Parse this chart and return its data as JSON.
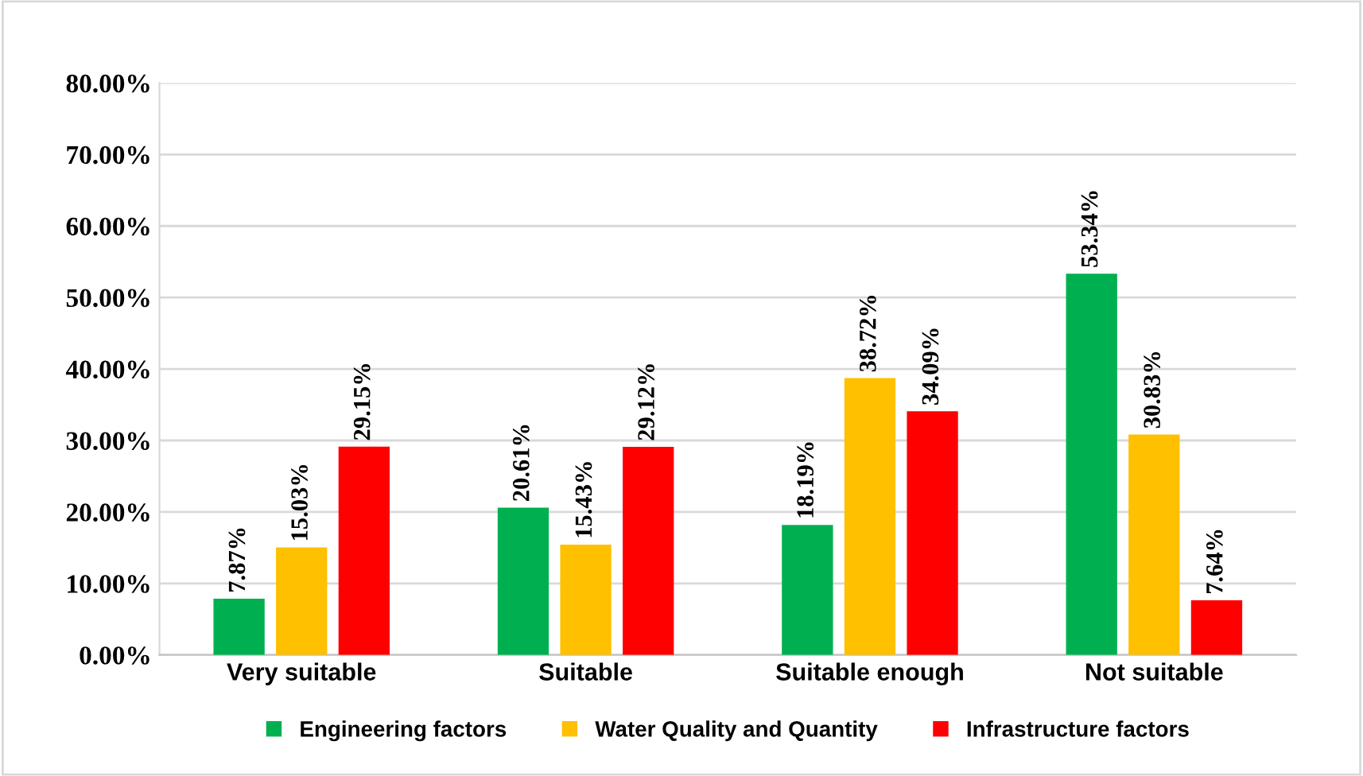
{
  "chart_data": {
    "type": "bar",
    "categories": [
      "Very suitable",
      "Suitable",
      "Suitable enough",
      "Not suitable"
    ],
    "series": [
      {
        "name": "Engineering factors",
        "color": "#00b050",
        "values": [
          7.87,
          20.61,
          18.19,
          53.34
        ],
        "value_labels": [
          "7.87%",
          "20.61%",
          "18.19%",
          "53.34%"
        ]
      },
      {
        "name": "Water Quality and Quantity",
        "color": "#ffc000",
        "values": [
          15.03,
          15.43,
          38.72,
          30.83
        ],
        "value_labels": [
          "15.03%",
          "15.43%",
          "38.72%",
          "30.83%"
        ]
      },
      {
        "name": "Infrastructure factors",
        "color": "#ff0000",
        "values": [
          29.15,
          29.12,
          34.09,
          7.64
        ],
        "value_labels": [
          "29.15%",
          "29.12%",
          "34.09%",
          "7.64%"
        ]
      }
    ],
    "ylim": [
      0,
      80
    ],
    "yticks": [
      {
        "value": 0,
        "label": "0.00%"
      },
      {
        "value": 10,
        "label": "10.00%"
      },
      {
        "value": 20,
        "label": "20.00%"
      },
      {
        "value": 30,
        "label": "30.00%"
      },
      {
        "value": 40,
        "label": "40.00%"
      },
      {
        "value": 50,
        "label": "50.00%"
      },
      {
        "value": 60,
        "label": "60.00%"
      },
      {
        "value": 70,
        "label": "70.00%"
      },
      {
        "value": 80,
        "label": "80.00%"
      }
    ],
    "grid": "y",
    "legend": "bottom"
  }
}
